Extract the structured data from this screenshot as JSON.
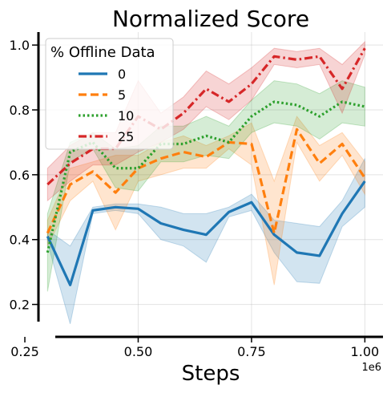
{
  "chart_data": {
    "type": "line",
    "title": "Normalized Score",
    "xlabel": "Steps",
    "ylabel": "",
    "x_offset_label": "1e6",
    "xlim": [
      0.28,
      1.04
    ],
    "ylim": [
      0.1,
      1.04
    ],
    "x_ticks": [
      0.25,
      0.5,
      0.75,
      1.0
    ],
    "x_tick_labels": [
      "0.25",
      "0.50",
      "0.75",
      "1.00"
    ],
    "y_ticks": [
      0.2,
      0.4,
      0.6,
      0.8,
      1.0
    ],
    "y_tick_labels": [
      "0.2",
      "0.4",
      "0.6",
      "0.8",
      "1.0"
    ],
    "grid": true,
    "legend": {
      "title": "% Offline Data",
      "placement": "top-left"
    },
    "x": [
      0.3,
      0.35,
      0.4,
      0.45,
      0.5,
      0.55,
      0.6,
      0.65,
      0.7,
      0.75,
      0.8,
      0.85,
      0.9,
      0.95,
      1.0
    ],
    "series": [
      {
        "name": "0",
        "color": "#1f77b4",
        "dash": "solid",
        "values": [
          0.41,
          0.26,
          0.49,
          0.5,
          0.495,
          0.45,
          0.43,
          0.415,
          0.485,
          0.515,
          0.415,
          0.36,
          0.35,
          0.48,
          0.58
        ],
        "lower": [
          0.39,
          0.14,
          0.48,
          0.49,
          0.48,
          0.4,
          0.38,
          0.33,
          0.47,
          0.49,
          0.36,
          0.27,
          0.265,
          0.44,
          0.5
        ],
        "upper": [
          0.43,
          0.38,
          0.5,
          0.51,
          0.51,
          0.5,
          0.48,
          0.48,
          0.5,
          0.54,
          0.46,
          0.45,
          0.44,
          0.52,
          0.65
        ]
      },
      {
        "name": "5",
        "color": "#ff7f0e",
        "dash": "dashed",
        "values": [
          0.42,
          0.57,
          0.61,
          0.545,
          0.62,
          0.65,
          0.67,
          0.655,
          0.7,
          0.695,
          0.42,
          0.74,
          0.635,
          0.695,
          0.59
        ],
        "lower": [
          0.38,
          0.52,
          0.58,
          0.43,
          0.58,
          0.6,
          0.62,
          0.62,
          0.68,
          0.63,
          0.26,
          0.7,
          0.58,
          0.66,
          0.54
        ],
        "upper": [
          0.46,
          0.62,
          0.64,
          0.66,
          0.66,
          0.7,
          0.72,
          0.69,
          0.72,
          0.76,
          0.58,
          0.78,
          0.69,
          0.73,
          0.64
        ]
      },
      {
        "name": "10",
        "color": "#2ca02c",
        "dash": "dotted",
        "values": [
          0.36,
          0.67,
          0.7,
          0.62,
          0.62,
          0.695,
          0.695,
          0.72,
          0.7,
          0.78,
          0.825,
          0.815,
          0.78,
          0.825,
          0.81
        ],
        "lower": [
          0.24,
          0.64,
          0.68,
          0.56,
          0.55,
          0.64,
          0.64,
          0.66,
          0.65,
          0.73,
          0.76,
          0.75,
          0.71,
          0.76,
          0.75
        ],
        "upper": [
          0.48,
          0.7,
          0.73,
          0.68,
          0.69,
          0.75,
          0.75,
          0.78,
          0.75,
          0.83,
          0.89,
          0.88,
          0.85,
          0.89,
          0.87
        ]
      },
      {
        "name": "25",
        "color": "#d62728",
        "dash": "dashdot",
        "values": [
          0.57,
          0.635,
          0.68,
          0.68,
          0.78,
          0.74,
          0.79,
          0.865,
          0.825,
          0.88,
          0.965,
          0.955,
          0.965,
          0.865,
          0.99
        ],
        "lower": [
          0.52,
          0.58,
          0.63,
          0.63,
          0.67,
          0.7,
          0.74,
          0.81,
          0.77,
          0.83,
          0.94,
          0.93,
          0.94,
          0.79,
          0.97
        ],
        "upper": [
          0.62,
          0.69,
          0.73,
          0.73,
          0.89,
          0.79,
          0.84,
          0.92,
          0.88,
          0.93,
          0.99,
          0.98,
          0.99,
          0.94,
          1.01
        ]
      }
    ]
  }
}
